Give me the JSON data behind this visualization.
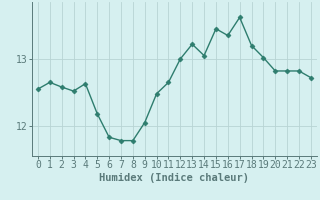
{
  "x": [
    0,
    1,
    2,
    3,
    4,
    5,
    6,
    7,
    8,
    9,
    10,
    11,
    12,
    13,
    14,
    15,
    16,
    17,
    18,
    19,
    20,
    21,
    22,
    23
  ],
  "y": [
    12.55,
    12.65,
    12.58,
    12.52,
    12.63,
    12.18,
    11.83,
    11.78,
    11.78,
    12.05,
    12.48,
    12.65,
    13.0,
    13.22,
    13.05,
    13.45,
    13.35,
    13.62,
    13.2,
    13.02,
    12.82,
    12.82,
    12.82,
    12.72
  ],
  "line_color": "#2e7d6e",
  "marker": "D",
  "marker_size": 2.5,
  "bg_color": "#d6f0f0",
  "grid_color": "#b8d4d4",
  "axis_color": "#5a7a7a",
  "xlabel": "Humidex (Indice chaleur)",
  "xlabel_fontsize": 7.5,
  "yticks": [
    12,
    13
  ],
  "ylim": [
    11.55,
    13.85
  ],
  "xlim": [
    -0.5,
    23.5
  ],
  "tick_fontsize": 7,
  "line_width": 1.0
}
